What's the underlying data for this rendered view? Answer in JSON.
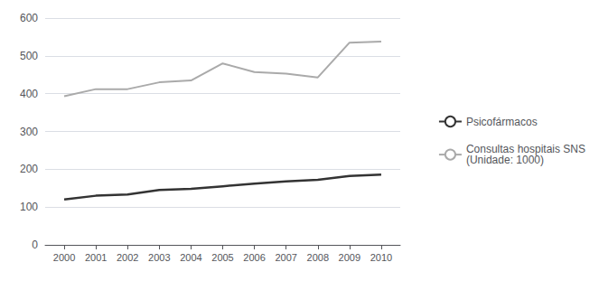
{
  "chart_data": {
    "type": "line",
    "x": [
      2000,
      2001,
      2002,
      2003,
      2004,
      2005,
      2006,
      2007,
      2008,
      2009,
      2010
    ],
    "series": [
      {
        "name": "Psicofármacos",
        "color": "#333333",
        "values": [
          120,
          130,
          133,
          145,
          148,
          155,
          162,
          168,
          172,
          182,
          186
        ]
      },
      {
        "name": "Consultas hospitais SNS\n(Unidade: 1000)",
        "color": "#aaaaaa",
        "values": [
          393,
          412,
          412,
          430,
          435,
          480,
          457,
          453,
          443,
          535,
          538
        ]
      }
    ],
    "xlim": [
      1999.4,
      2010.6
    ],
    "xticks": [
      2000,
      2001,
      2002,
      2003,
      2004,
      2005,
      2006,
      2007,
      2008,
      2009,
      2010
    ],
    "ylim": [
      0,
      600
    ],
    "yticks": [
      0,
      100,
      200,
      300,
      400,
      500,
      600
    ],
    "grid": true,
    "legend": "right"
  }
}
